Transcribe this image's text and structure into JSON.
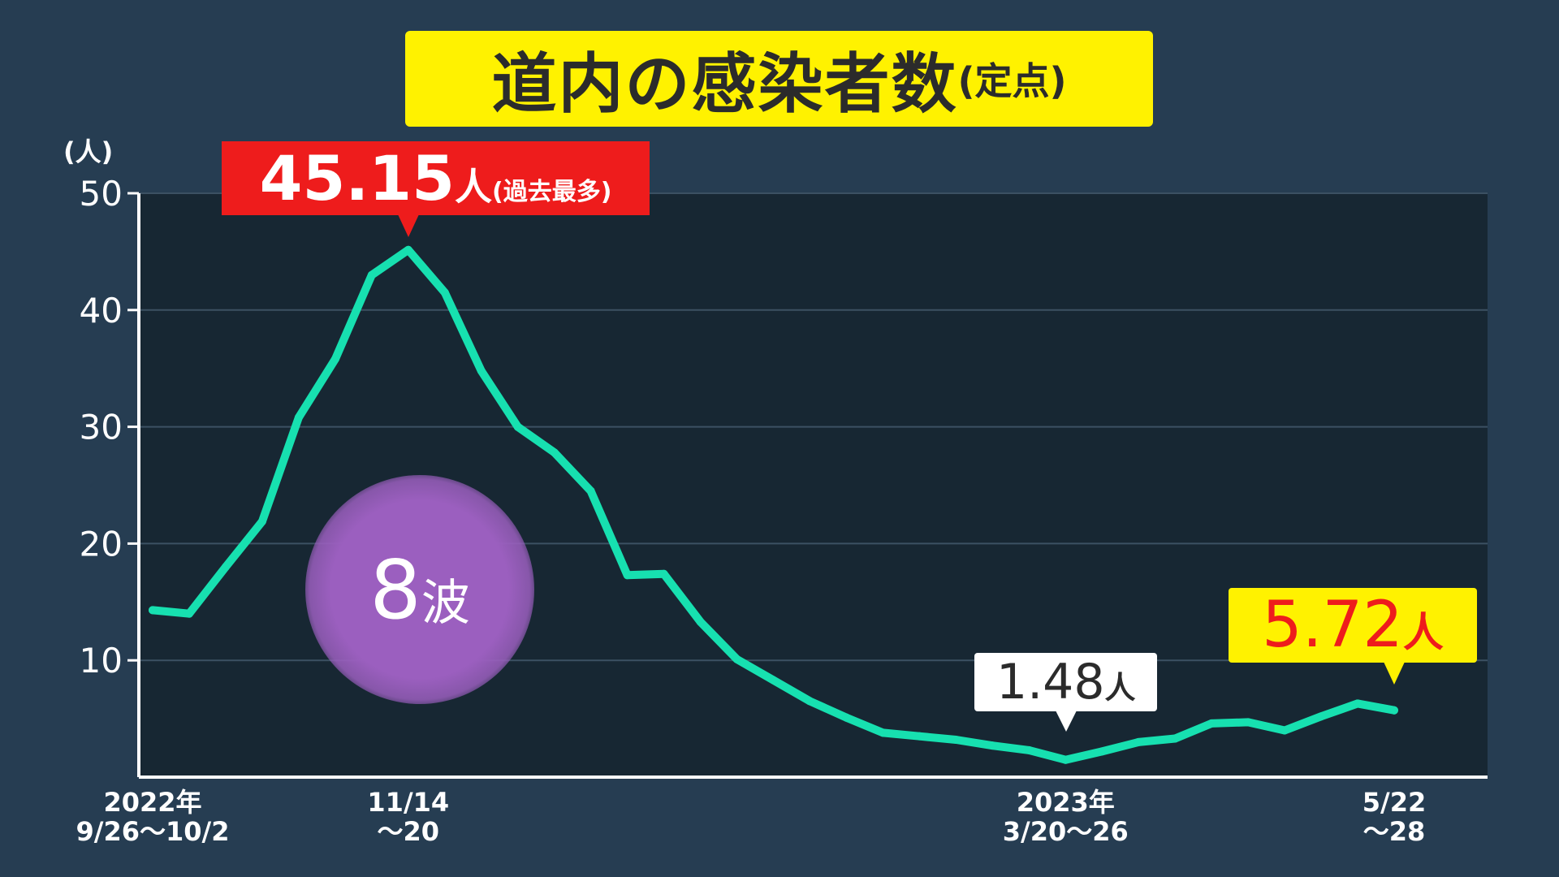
{
  "title": {
    "main": "道内の感染者数",
    "sub": "(定点)"
  },
  "colors": {
    "background": "#263d52",
    "plot_bg": "#172733",
    "line": "#17e0b0",
    "title_bg": "#fff200",
    "peak_bg": "#ee1c1c",
    "wave_circle": "#9b5fbf"
  },
  "chart_data": {
    "type": "line",
    "title": "道内の感染者数(定点)",
    "ylabel": "(人)",
    "ylim": [
      0,
      50
    ],
    "yticks": [
      10,
      20,
      30,
      40,
      50
    ],
    "grid": true,
    "x_tick_labels": [
      {
        "index": 0,
        "line1": "2022年",
        "line2": "9/26〜10/2"
      },
      {
        "index": 7,
        "line1": "11/14",
        "line2": "〜20"
      },
      {
        "index": 25,
        "line1": "2023年",
        "line2": "3/20〜26"
      },
      {
        "index": 34,
        "line1": "5/22",
        "line2": "〜28"
      }
    ],
    "series": [
      {
        "values": [
          14.3,
          14.0,
          18.0,
          21.9,
          30.8,
          35.8,
          43.0,
          45.15,
          41.5,
          34.8,
          30.0,
          27.8,
          24.5,
          17.3,
          17.4,
          13.3,
          10.1,
          8.3,
          6.5,
          5.1,
          3.8,
          3.5,
          3.2,
          2.7,
          2.3,
          1.48,
          2.2,
          3.0,
          3.3,
          4.6,
          4.7,
          4.0,
          5.2,
          6.3,
          5.72
        ]
      }
    ],
    "annotations": {
      "peak": {
        "index": 7,
        "value": "45.15",
        "unit": "人",
        "note": "(過去最多)"
      },
      "min": {
        "index": 25,
        "value": "1.48",
        "unit": "人"
      },
      "latest": {
        "index": 34,
        "value": "5.72",
        "unit": "人"
      },
      "wave": {
        "number": "8",
        "label": "波"
      }
    }
  }
}
